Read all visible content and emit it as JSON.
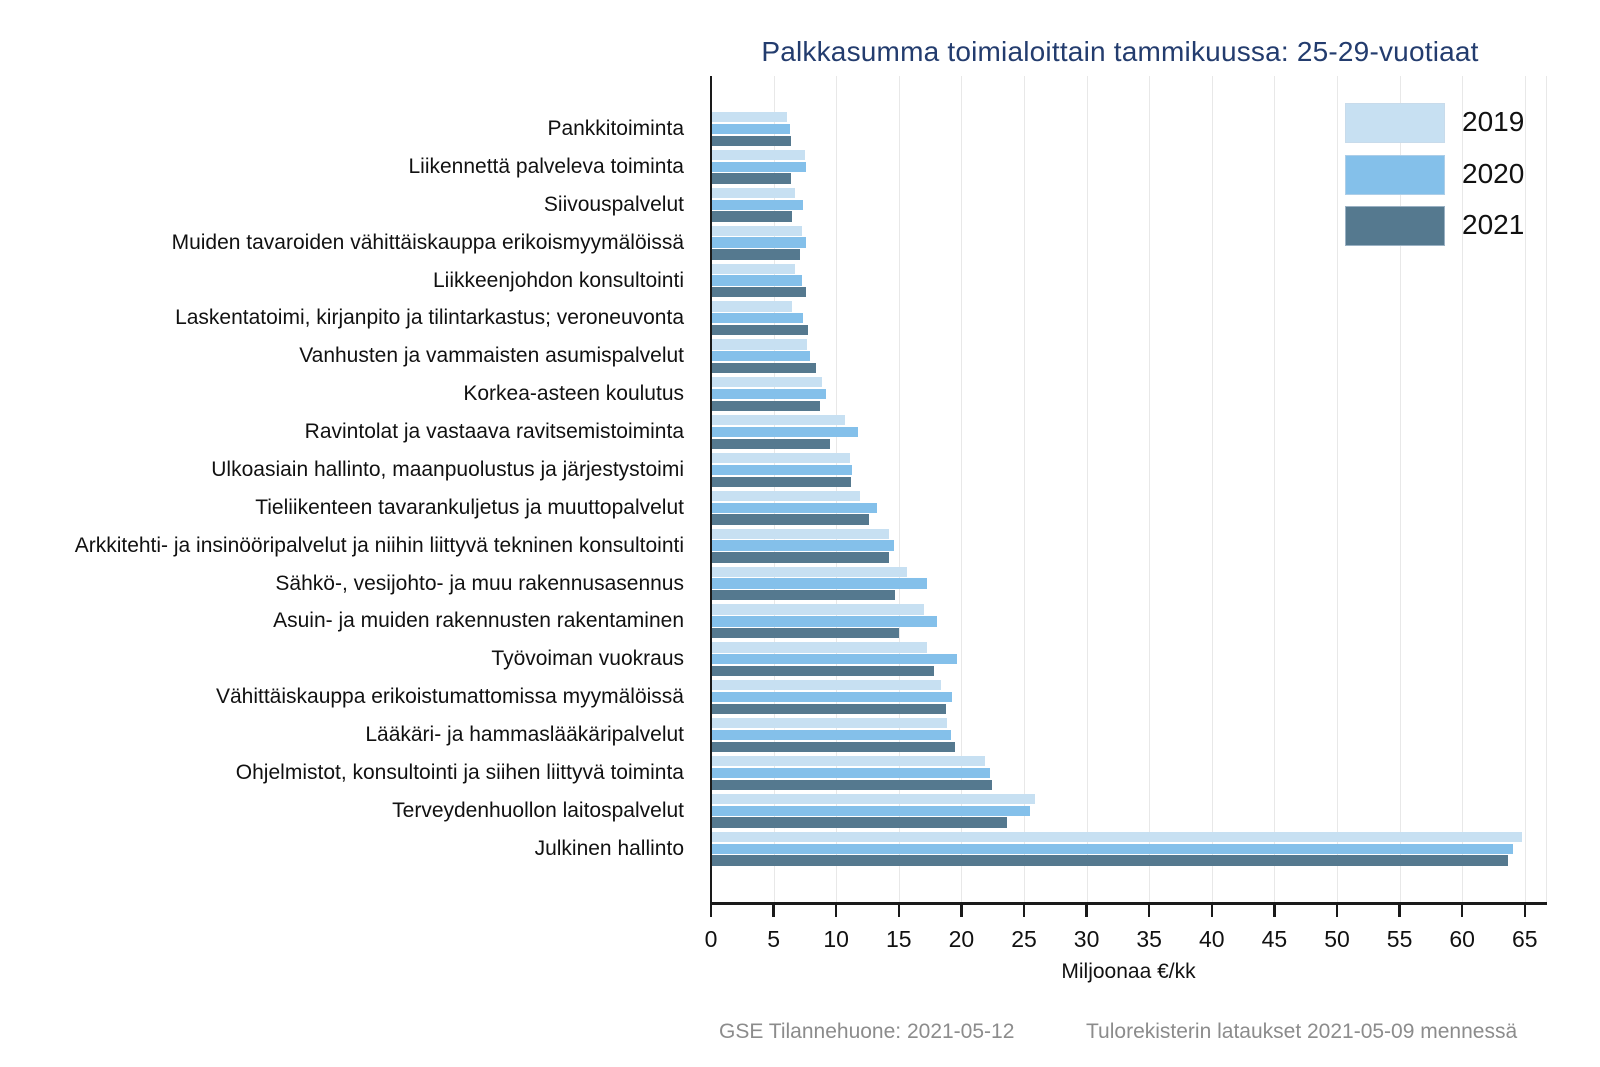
{
  "footer": {
    "left": "GSE Tilannehuone: 2021-05-12",
    "right": "Tulorekisterin lataukset 2021-05-09 mennessä"
  },
  "colors": {
    "title_text": "#233c6e",
    "axis": "#1a1a1a",
    "gridline": "#e8e8e8",
    "footer_text": "#8c8c8c"
  },
  "chart_data": {
    "type": "bar",
    "orientation": "horizontal",
    "title": "Palkkasumma toimialoittain tammikuussa: 25-29-vuotiaat",
    "xlabel": "Miljoonaa €/kk",
    "xlim": [
      0,
      66
    ],
    "xticks": [
      0,
      5,
      10,
      15,
      20,
      25,
      30,
      35,
      40,
      45,
      50,
      55,
      60,
      65
    ],
    "grid": true,
    "legend_position": "top-right",
    "categories": [
      "Pankkitoiminta",
      "Liikennettä palveleva toiminta",
      "Siivouspalvelut",
      "Muiden tavaroiden vähittäiskauppa erikoismyymälöissä",
      "Liikkeenjohdon konsultointi",
      "Laskentatoimi, kirjanpito ja tilintarkastus; veroneuvonta",
      "Vanhusten ja vammaisten asumispalvelut",
      "Korkea-asteen koulutus",
      "Ravintolat ja vastaava ravitsemistoiminta",
      "Ulkoasiain hallinto, maanpuolustus ja järjestystoimi",
      "Tieliikenteen tavarankuljetus ja muuttopalvelut",
      "Arkkitehti- ja insinööripalvelut ja niihin liittyvä tekninen konsultointi",
      "Sähkö-, vesijohto- ja muu rakennusasennus",
      "Asuin- ja muiden rakennusten rakentaminen",
      "Työvoiman vuokraus",
      "Vähittäiskauppa erikoistumattomissa myymälöissä",
      "Lääkäri- ja hammaslääkäripalvelut",
      "Ohjelmistot, konsultointi ja siihen liittyvä toiminta",
      "Terveydenhuollon laitospalvelut",
      "Julkinen hallinto"
    ],
    "series": [
      {
        "name": "2019",
        "color": "#c7e0f2",
        "values": [
          6.0,
          7.4,
          6.6,
          7.2,
          6.6,
          6.4,
          7.6,
          8.8,
          10.6,
          11.0,
          11.8,
          14.1,
          15.6,
          16.9,
          17.2,
          18.3,
          18.8,
          21.8,
          25.8,
          64.7
        ]
      },
      {
        "name": "2020",
        "color": "#84c0ea",
        "values": [
          6.2,
          7.5,
          7.3,
          7.5,
          7.2,
          7.3,
          7.8,
          9.1,
          11.7,
          11.2,
          13.2,
          14.5,
          17.2,
          18.0,
          19.6,
          19.2,
          19.1,
          22.2,
          25.4,
          64.0
        ]
      },
      {
        "name": "2021",
        "color": "#55798f",
        "values": [
          6.3,
          6.3,
          6.4,
          7.0,
          7.5,
          7.7,
          8.3,
          8.6,
          9.4,
          11.1,
          12.5,
          14.1,
          14.6,
          14.9,
          17.7,
          18.7,
          19.4,
          22.4,
          23.6,
          63.6
        ]
      }
    ]
  }
}
